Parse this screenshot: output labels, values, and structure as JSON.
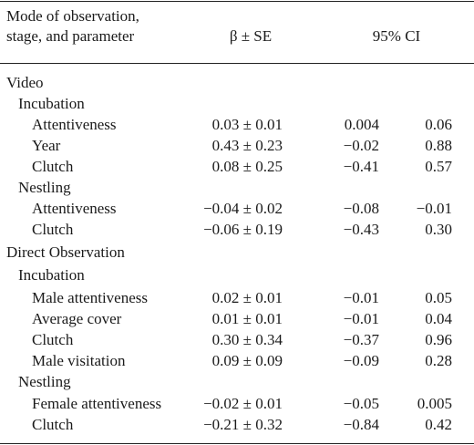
{
  "header": {
    "col1_line1": "Mode of observation,",
    "col1_line2": "stage, and parameter",
    "col2": "β ± SE",
    "col3": "95% CI"
  },
  "rows": [
    {
      "label": "Video",
      "level": 0
    },
    {
      "label": "Incubation",
      "level": 1
    },
    {
      "label": "Attentiveness",
      "level": 2,
      "beta": "0.03 ± 0.01",
      "lo": "0.004",
      "hi": "0.06"
    },
    {
      "label": "Year",
      "level": 2,
      "beta": "0.43 ± 0.23",
      "lo": "−0.02",
      "hi": "0.88"
    },
    {
      "label": "Clutch",
      "level": 2,
      "beta": "0.08 ± 0.25",
      "lo": "−0.41",
      "hi": "0.57"
    },
    {
      "label": "Nestling",
      "level": 1
    },
    {
      "label": "Attentiveness",
      "level": 2,
      "beta": "−0.04 ± 0.02",
      "lo": "−0.08",
      "hi": "−0.01"
    },
    {
      "label": "Clutch",
      "level": 2,
      "beta": "−0.06 ± 0.19",
      "lo": "−0.43",
      "hi": "0.30"
    },
    {
      "label": "Direct Observation",
      "level": 0
    },
    {
      "label": "Incubation",
      "level": 1
    },
    {
      "label": "Male attentiveness",
      "level": 2,
      "beta": "0.02 ± 0.01",
      "lo": "−0.01",
      "hi": "0.05"
    },
    {
      "label": "Average cover",
      "level": 2,
      "beta": "0.01 ± 0.01",
      "lo": "−0.01",
      "hi": "0.04"
    },
    {
      "label": "Clutch",
      "level": 2,
      "beta": "0.30 ± 0.34",
      "lo": "−0.37",
      "hi": "0.96"
    },
    {
      "label": "Male visitation",
      "level": 2,
      "beta": "0.09 ± 0.09",
      "lo": "−0.09",
      "hi": "0.28"
    },
    {
      "label": "Nestling",
      "level": 1
    },
    {
      "label": "Female attentiveness",
      "level": 2,
      "beta": "−0.02 ± 0.01",
      "lo": "−0.05",
      "hi": "0.005"
    },
    {
      "label": "Clutch",
      "level": 2,
      "beta": "−0.21 ± 0.32",
      "lo": "−0.84",
      "hi": "0.42"
    }
  ]
}
